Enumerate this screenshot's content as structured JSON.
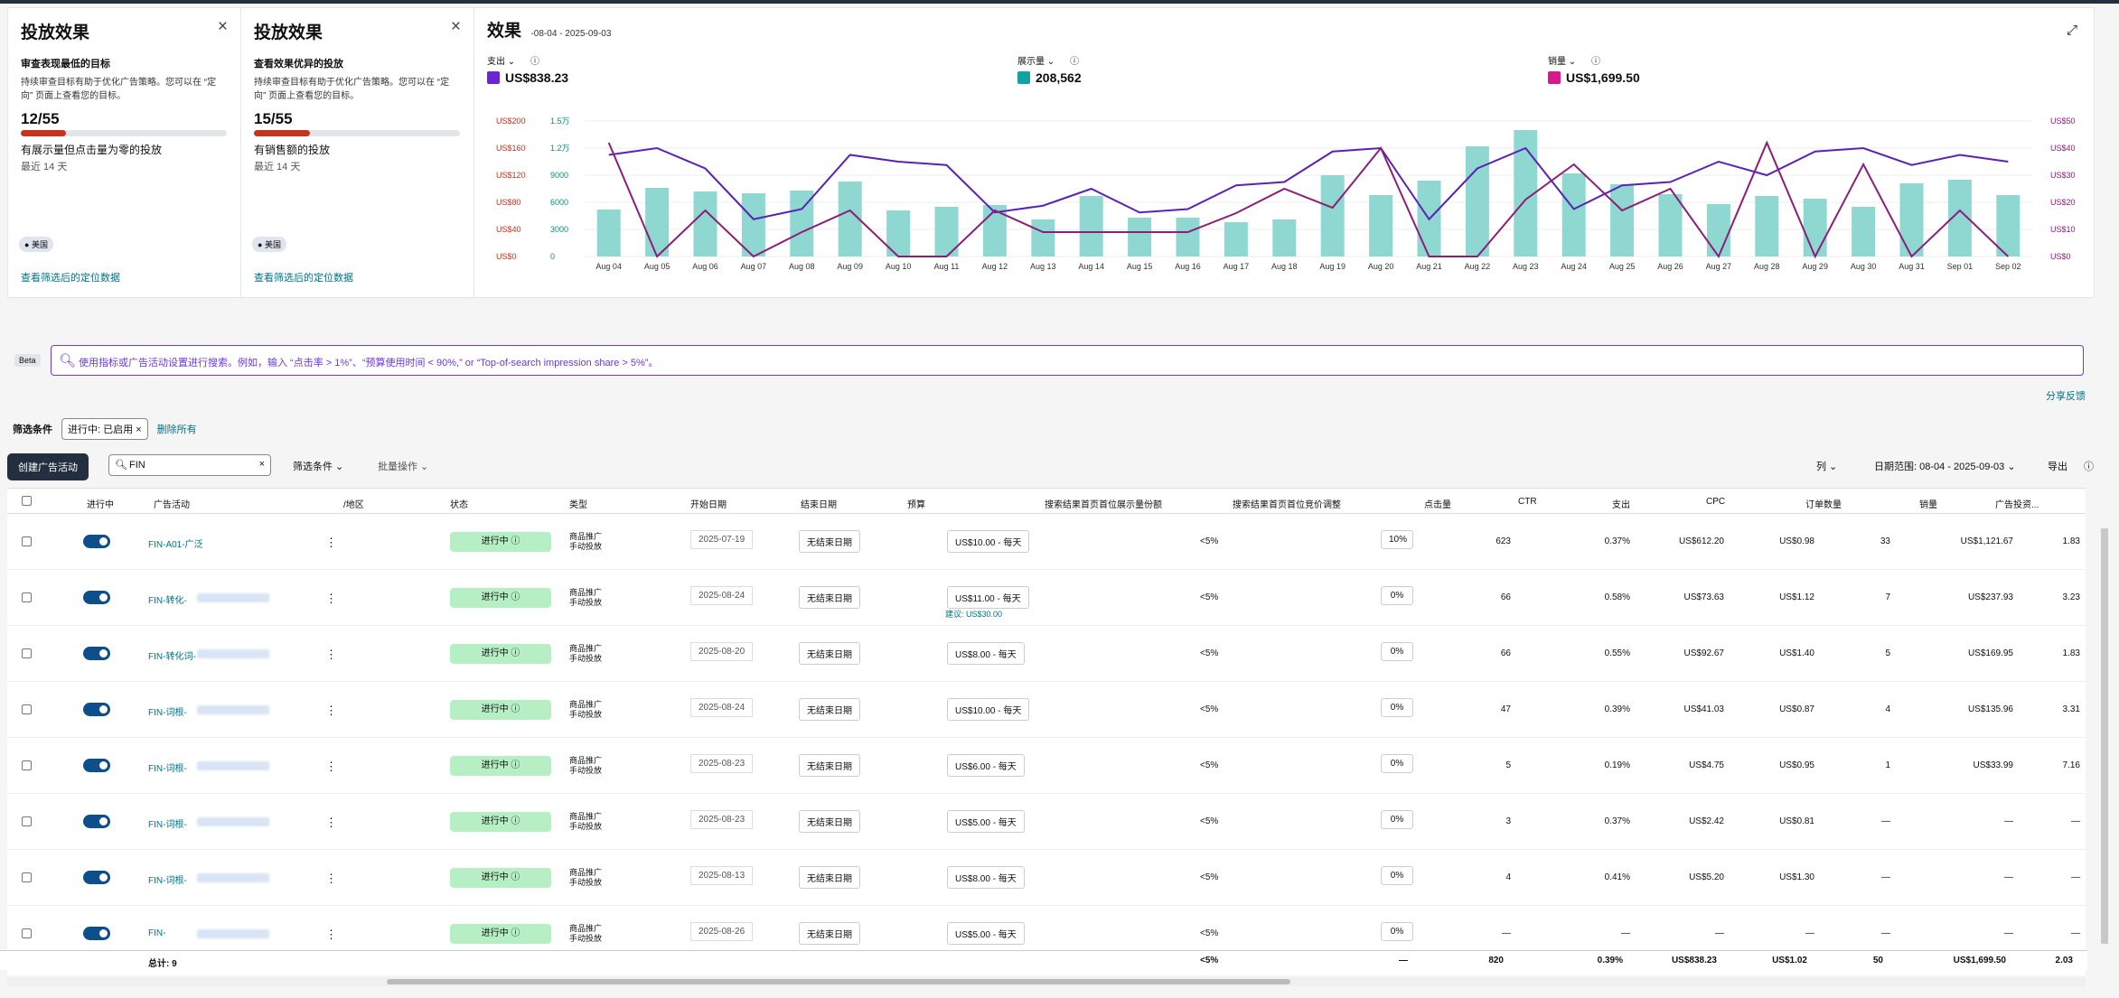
{
  "cards": [
    {
      "title": "投放效果",
      "subtitle": "审查表现最低的目标",
      "desc": "持续审查目标有助于优化广告策略。您可以在 “定向” 页面上查看您的目标。",
      "fraction": "12/55",
      "progress": 0.218,
      "line1": "有展示量但点击量为零的投放",
      "line2": "最近 14 天",
      "tag": "美国",
      "link": "查看筛选后的定位数据"
    },
    {
      "title": "投放效果",
      "subtitle": "查看效果优异的投放",
      "desc": "持续审查目标有助于优化广告策略。您可以在 “定向” 页面上查看您的目标。",
      "fraction": "15/55",
      "progress": 0.273,
      "line1": "有销售额的投放",
      "line2": "最近 14 天",
      "tag": "美国",
      "link": "查看筛选后的定位数据"
    }
  ],
  "chart": {
    "title": "效果",
    "date": "-08-04 - 2025-09-03",
    "metrics": [
      {
        "label": "支出",
        "value": "US$838.23",
        "color": "#6b24d6"
      },
      {
        "label": "展示量",
        "value": "208,562",
        "color": "#0ea5a0"
      },
      {
        "label": "销量",
        "value": "US$1,699.50",
        "color": "#d6198c"
      }
    ]
  },
  "chart_data": {
    "type": "bar",
    "categories": [
      "Aug 04",
      "Aug 05",
      "Aug 06",
      "Aug 07",
      "Aug 08",
      "Aug 09",
      "Aug 10",
      "Aug 11",
      "Aug 12",
      "Aug 13",
      "Aug 14",
      "Aug 15",
      "Aug 16",
      "Aug 17",
      "Aug 18",
      "Aug 19",
      "Aug 20",
      "Aug 21",
      "Aug 22",
      "Aug 23",
      "Aug 24",
      "Aug 25",
      "Aug 26",
      "Aug 27",
      "Aug 28",
      "Aug 29",
      "Aug 30",
      "Aug 31",
      "Sep 01",
      "Sep 02"
    ],
    "series": [
      {
        "values": [
          5200,
          7600,
          7200,
          7000,
          7300,
          8300,
          5100,
          5500,
          5700,
          4100,
          6700,
          4300,
          4300,
          3800,
          4100,
          9000,
          6800,
          8400,
          12200,
          14000,
          9200,
          8000,
          6900,
          5800,
          6700,
          6400,
          5500,
          8100,
          8500,
          6800
        ],
        "axis": "impressions"
      },
      {
        "values": [
          150,
          160,
          130,
          55,
          70,
          150,
          140,
          135,
          65,
          75,
          100,
          65,
          70,
          105,
          110,
          155,
          160,
          55,
          130,
          160,
          70,
          105,
          110,
          140,
          120,
          155,
          160,
          135,
          150,
          140
        ],
        "axis": "spend"
      },
      {
        "values": [
          42,
          0,
          17,
          0,
          9,
          17,
          0,
          0,
          17,
          9,
          9,
          9,
          9,
          16,
          25,
          18,
          40,
          0,
          0,
          21,
          34,
          17,
          25,
          0,
          42,
          0,
          34,
          0,
          17,
          0
        ],
        "axis": "sales"
      }
    ],
    "y_left_spend": [
      "US$200",
      "US$160",
      "US$120",
      "US$80",
      "US$40",
      "US$0"
    ],
    "y_left_impr": [
      "1.5万",
      "1.2万",
      "9000",
      "6000",
      "3000",
      "0"
    ],
    "y_right": [
      "US$50",
      "US$40",
      "US$30",
      "US$20",
      "US$10",
      "US$0"
    ]
  },
  "search": {
    "beta": "Beta",
    "placeholder": "使用指标或广告活动设置进行搜索。例如，输入 “点击率 > 1%”、“预算使用时间 < 90%,” or “Top-of-search impression share > 5%”。",
    "feedback": "分享反馈"
  },
  "filters": {
    "label": "筛选条件",
    "chip": "进行中: 已启用",
    "clear": "删除所有"
  },
  "toolbar": {
    "create": "创建广告活动",
    "search": "FIN",
    "filter": "筛选条件",
    "bulk": "批量操作",
    "columns": "列",
    "range": "日期范围: 08-04 - 2025-09-03",
    "export": "导出"
  },
  "columns": [
    "进行中",
    "广告活动",
    "/地区",
    "状态",
    "类型",
    "开始日期",
    "结束日期",
    "预算",
    "搜索结果首页首位展示量份额",
    "搜索结果首页首位竞价调整",
    "点击量",
    "CTR",
    "支出",
    "CPC",
    "订单数量",
    "销量",
    "广告投资..."
  ],
  "rows": [
    {
      "name": "FIN-A01-广泛",
      "blur": false,
      "status": "进行中",
      "type1": "商品推广",
      "type2": "手动投放",
      "start": "2025-07-19",
      "end": "无结束日期",
      "budget": "US$10.00 - 每天",
      "sugg": "",
      "share": "<5%",
      "adj": "10%",
      "clicks": "623",
      "ctr": "0.37%",
      "spend": "US$612.20",
      "cpc": "US$0.98",
      "orders": "33",
      "sales": "US$1,121.67",
      "roas": "1.83"
    },
    {
      "name": "FIN-转化-",
      "blur": true,
      "status": "进行中",
      "type1": "商品推广",
      "type2": "手动投放",
      "start": "2025-08-24",
      "end": "无结束日期",
      "budget": "US$11.00 - 每天",
      "sugg": "建议: US$30.00",
      "share": "<5%",
      "adj": "0%",
      "clicks": "66",
      "ctr": "0.58%",
      "spend": "US$73.63",
      "cpc": "US$1.12",
      "orders": "7",
      "sales": "US$237.93",
      "roas": "3.23"
    },
    {
      "name": "FIN-转化词-",
      "blur": true,
      "status": "进行中",
      "type1": "商品推广",
      "type2": "手动投放",
      "start": "2025-08-20",
      "end": "无结束日期",
      "budget": "US$8.00 - 每天",
      "sugg": "",
      "share": "<5%",
      "adj": "0%",
      "clicks": "66",
      "ctr": "0.55%",
      "spend": "US$92.67",
      "cpc": "US$1.40",
      "orders": "5",
      "sales": "US$169.95",
      "roas": "1.83"
    },
    {
      "name": "FIN-词根-",
      "blur": true,
      "status": "进行中",
      "type1": "商品推广",
      "type2": "手动投放",
      "start": "2025-08-24",
      "end": "无结束日期",
      "budget": "US$10.00 - 每天",
      "sugg": "",
      "share": "<5%",
      "adj": "0%",
      "clicks": "47",
      "ctr": "0.39%",
      "spend": "US$41.03",
      "cpc": "US$0.87",
      "orders": "4",
      "sales": "US$135.96",
      "roas": "3.31"
    },
    {
      "name": "FIN-词根-",
      "blur": true,
      "status": "进行中",
      "type1": "商品推广",
      "type2": "手动投放",
      "start": "2025-08-23",
      "end": "无结束日期",
      "budget": "US$6.00 - 每天",
      "sugg": "",
      "share": "<5%",
      "adj": "0%",
      "clicks": "5",
      "ctr": "0.19%",
      "spend": "US$4.75",
      "cpc": "US$0.95",
      "orders": "1",
      "sales": "US$33.99",
      "roas": "7.16"
    },
    {
      "name": "FIN-词根-",
      "blur": true,
      "status": "进行中",
      "type1": "商品推广",
      "type2": "手动投放",
      "start": "2025-08-23",
      "end": "无结束日期",
      "budget": "US$5.00 - 每天",
      "sugg": "",
      "share": "<5%",
      "adj": "0%",
      "clicks": "3",
      "ctr": "0.37%",
      "spend": "US$2.42",
      "cpc": "US$0.81",
      "orders": "—",
      "sales": "—",
      "roas": "—"
    },
    {
      "name": "FIN-词根-",
      "blur": true,
      "status": "进行中",
      "type1": "商品推广",
      "type2": "手动投放",
      "start": "2025-08-13",
      "end": "无结束日期",
      "budget": "US$8.00 - 每天",
      "sugg": "",
      "share": "<5%",
      "adj": "0%",
      "clicks": "4",
      "ctr": "0.41%",
      "spend": "US$5.20",
      "cpc": "US$1.30",
      "orders": "—",
      "sales": "—",
      "roas": "—"
    },
    {
      "name": "FIN-",
      "blur": true,
      "status": "进行中",
      "type1": "商品推广",
      "type2": "手动投放",
      "start": "2025-08-26",
      "end": "无结束日期",
      "budget": "US$5.00 - 每天",
      "sugg": "",
      "share": "<5%",
      "adj": "0%",
      "clicks": "—",
      "ctr": "—",
      "spend": "—",
      "cpc": "—",
      "orders": "—",
      "sales": "—",
      "roas": "—"
    }
  ],
  "totals": {
    "label": "总计: 9",
    "share": "<5%",
    "adj": "—",
    "clicks": "820",
    "ctr": "0.39%",
    "spend": "US$838.23",
    "cpc": "US$1.02",
    "orders": "50",
    "sales": "US$1,699.50",
    "roas": "2.03"
  }
}
